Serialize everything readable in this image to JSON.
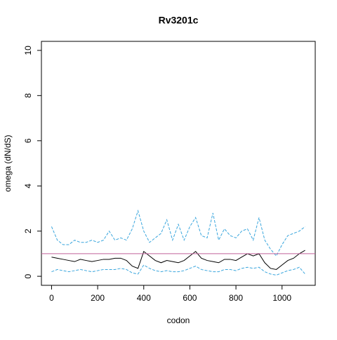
{
  "chart_data": {
    "type": "line",
    "title": "Rv3201c",
    "xlabel": "codon",
    "ylabel": "omega (dN/dS)",
    "x": [
      0,
      25,
      50,
      75,
      100,
      125,
      150,
      175,
      200,
      225,
      250,
      275,
      300,
      325,
      350,
      375,
      400,
      425,
      450,
      475,
      500,
      525,
      550,
      575,
      600,
      625,
      650,
      675,
      700,
      725,
      750,
      775,
      800,
      825,
      850,
      875,
      900,
      925,
      950,
      975,
      1000,
      1025,
      1050,
      1075,
      1100
    ],
    "series": [
      {
        "color": "#000000",
        "dashed": false,
        "values": [
          0.85,
          0.8,
          0.75,
          0.7,
          0.65,
          0.75,
          0.7,
          0.65,
          0.7,
          0.75,
          0.75,
          0.8,
          0.8,
          0.7,
          0.45,
          0.35,
          1.1,
          0.9,
          0.7,
          0.6,
          0.7,
          0.65,
          0.6,
          0.7,
          0.9,
          1.1,
          0.8,
          0.7,
          0.65,
          0.6,
          0.75,
          0.75,
          0.7,
          0.85,
          1.0,
          0.9,
          1.0,
          0.6,
          0.35,
          0.3,
          0.5,
          0.7,
          0.8,
          1.0,
          1.15
        ]
      },
      {
        "color": "#3aa6dd",
        "dashed": true,
        "values": [
          2.2,
          1.6,
          1.4,
          1.4,
          1.6,
          1.5,
          1.5,
          1.6,
          1.5,
          1.6,
          2.0,
          1.6,
          1.7,
          1.6,
          2.1,
          2.9,
          2.0,
          1.5,
          1.7,
          1.9,
          2.5,
          1.6,
          2.3,
          1.6,
          2.2,
          2.6,
          1.8,
          1.7,
          2.8,
          1.6,
          2.1,
          1.8,
          1.7,
          2.0,
          2.1,
          1.6,
          2.6,
          1.6,
          1.2,
          0.9,
          1.4,
          1.8,
          1.9,
          2.0,
          2.2
        ]
      },
      {
        "color": "#3aa6dd",
        "dashed": true,
        "values": [
          0.2,
          0.3,
          0.25,
          0.2,
          0.25,
          0.3,
          0.25,
          0.2,
          0.25,
          0.3,
          0.3,
          0.3,
          0.35,
          0.3,
          0.15,
          0.1,
          0.5,
          0.35,
          0.25,
          0.2,
          0.25,
          0.2,
          0.2,
          0.25,
          0.35,
          0.45,
          0.3,
          0.25,
          0.2,
          0.2,
          0.3,
          0.3,
          0.25,
          0.35,
          0.4,
          0.35,
          0.4,
          0.2,
          0.1,
          0.05,
          0.15,
          0.25,
          0.3,
          0.4,
          0.1
        ]
      }
    ],
    "hline": 1,
    "hline_color": "#c0609a",
    "xlim": [
      -44,
      1144
    ],
    "ylim": [
      -0.4,
      10.4
    ],
    "xticks": [
      0,
      200,
      400,
      600,
      800,
      1000
    ],
    "yticks": [
      0,
      2,
      4,
      6,
      8,
      10
    ]
  }
}
